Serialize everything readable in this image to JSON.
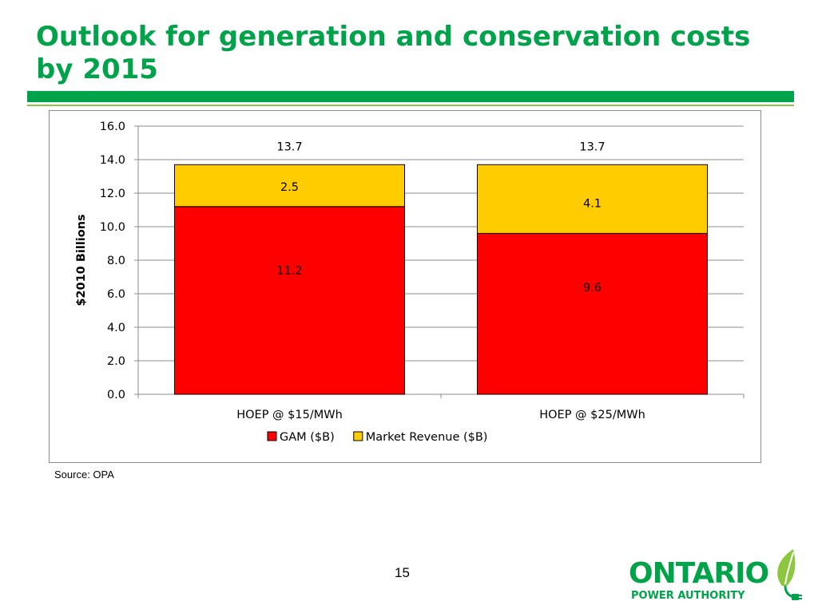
{
  "slide": {
    "title_line1": "Outlook for generation and conservation costs",
    "title_line2": "by 2015",
    "source": "Source: OPA",
    "page_number": "15"
  },
  "logo": {
    "line1": "ONTARIO",
    "line2": "POWER AUTHORITY",
    "icon": "leaf-plug-icon"
  },
  "colors": {
    "title": "#00a24a",
    "gam": "#ff0000",
    "market_revenue": "#ffcc00",
    "gridline": "#8c8c8c"
  },
  "chart_data": {
    "type": "bar",
    "stacked": true,
    "categories": [
      "HOEP @ $15/MWh",
      "HOEP @ $25/MWh"
    ],
    "series": [
      {
        "name": "GAM ($B)",
        "values": [
          11.2,
          9.6
        ],
        "labels": [
          "11.2",
          "9.6"
        ],
        "color": "#ff0000"
      },
      {
        "name": "Market Revenue ($B)",
        "values": [
          2.5,
          4.1
        ],
        "labels": [
          "2.5",
          "4.1"
        ],
        "color": "#ffcc00"
      }
    ],
    "totals": [
      "13.7",
      "13.7"
    ],
    "ylabel": "$2010 Billions",
    "ylim": [
      0,
      16
    ],
    "yticks": [
      "0.0",
      "2.0",
      "4.0",
      "6.0",
      "8.0",
      "10.0",
      "12.0",
      "14.0",
      "16.0"
    ],
    "grid": true,
    "legend": "bottom"
  }
}
